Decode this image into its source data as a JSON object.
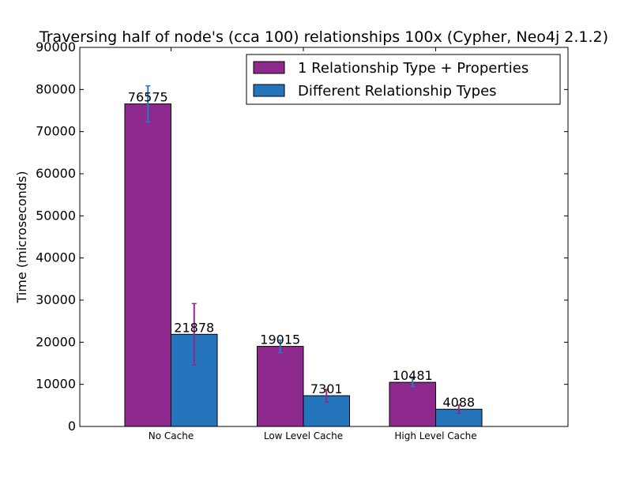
{
  "chart_data": {
    "type": "bar",
    "title": "Traversing half of node's (cca 100) relationships 100x (Cypher, Neo4j 2.1.2)",
    "xlabel": "",
    "ylabel": "Time (microseconds)",
    "ylim": [
      0,
      90000
    ],
    "yticks": [
      0,
      10000,
      20000,
      30000,
      40000,
      50000,
      60000,
      70000,
      80000,
      90000
    ],
    "categories": [
      "No Cache",
      "Low Level Cache",
      "High Level Cache"
    ],
    "legend_position": "top-right",
    "grid": false,
    "series": [
      {
        "name": "1 Relationship Type + Properties",
        "color": "#8e2a8e",
        "error_color": "#2a78c2",
        "values": [
          76575,
          19015,
          10481
        ],
        "errors": [
          4300,
          1500,
          1000
        ],
        "labels": [
          "76575",
          "19015",
          "10481"
        ]
      },
      {
        "name": "Different Relationship Types",
        "color": "#2475bc",
        "error_color": "#8e2a8e",
        "values": [
          21878,
          7301,
          4088
        ],
        "errors": [
          7300,
          1500,
          1000
        ],
        "labels": [
          "21878",
          "7301",
          "4088"
        ]
      }
    ]
  }
}
